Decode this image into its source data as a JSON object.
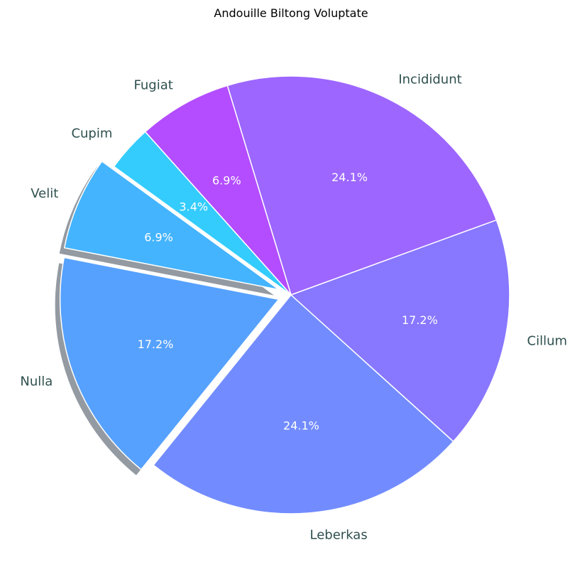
{
  "chart_data": {
    "type": "pie",
    "title": "Andouille Biltong Voluptate",
    "slices": [
      {
        "label": "Incididunt",
        "percent": 24.1,
        "pct_label": "24.1%",
        "color": "#9d66ff",
        "exploded": false
      },
      {
        "label": "Fugiat",
        "percent": 6.9,
        "pct_label": "6.9%",
        "color": "#b34dff",
        "exploded": false
      },
      {
        "label": "Cupim",
        "percent": 3.4,
        "pct_label": "3.4%",
        "color": "#33ccfc",
        "exploded": false
      },
      {
        "label": "Velit",
        "percent": 6.9,
        "pct_label": "6.9%",
        "color": "#44b4fe",
        "exploded": true
      },
      {
        "label": "Nulla",
        "percent": 17.2,
        "pct_label": "17.2%",
        "color": "#56a1fe",
        "exploded": true
      },
      {
        "label": "Leberkas",
        "percent": 24.1,
        "pct_label": "24.1%",
        "color": "#728cff",
        "exploded": false
      },
      {
        "label": "Cillum",
        "percent": 17.2,
        "pct_label": "17.2%",
        "color": "#8877ff",
        "exploded": false
      }
    ],
    "start_angle_deg": 20,
    "direction": "counterclockwise",
    "shadow": true,
    "label_color": "#2f4f4f",
    "pct_color": "#ffffff",
    "edge_color": "#ffffff"
  }
}
